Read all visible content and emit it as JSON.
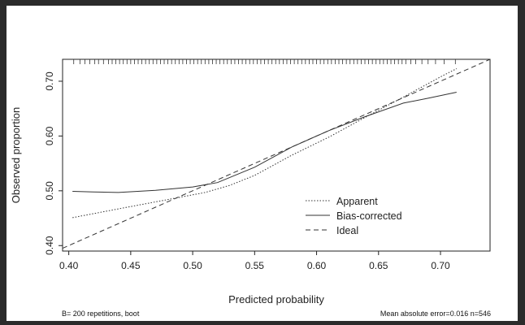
{
  "chart_data": {
    "type": "line",
    "xlabel": "Predicted probability",
    "ylabel": "Observed proportion",
    "xlim": [
      0.395,
      0.74
    ],
    "ylim": [
      0.39,
      0.74
    ],
    "x_ticks": [
      0.4,
      0.45,
      0.5,
      0.55,
      0.6,
      0.65,
      0.7
    ],
    "x_tick_labels": [
      "0.40",
      "0.45",
      "0.50",
      "0.55",
      "0.60",
      "0.65",
      "0.70"
    ],
    "y_ticks": [
      0.4,
      0.5,
      0.6,
      0.7
    ],
    "y_tick_labels": [
      "0.40",
      "0.50",
      "0.60",
      "0.70"
    ],
    "rug_x": [
      0.404,
      0.409,
      0.413,
      0.417,
      0.421,
      0.424,
      0.428,
      0.432,
      0.435,
      0.438,
      0.441,
      0.444,
      0.447,
      0.45,
      0.453,
      0.456,
      0.459,
      0.462,
      0.465,
      0.468,
      0.471,
      0.474,
      0.477,
      0.48,
      0.483,
      0.486,
      0.489,
      0.492,
      0.495,
      0.498,
      0.501,
      0.504,
      0.507,
      0.51,
      0.513,
      0.516,
      0.519,
      0.522,
      0.525,
      0.528,
      0.531,
      0.534,
      0.537,
      0.54,
      0.543,
      0.546,
      0.549,
      0.552,
      0.555,
      0.558,
      0.561,
      0.564,
      0.567,
      0.57,
      0.573,
      0.576,
      0.579,
      0.582,
      0.585,
      0.588,
      0.591,
      0.594,
      0.597,
      0.6,
      0.603,
      0.606,
      0.609,
      0.612,
      0.615,
      0.618,
      0.621,
      0.624,
      0.627,
      0.63,
      0.633,
      0.636,
      0.639,
      0.642,
      0.645,
      0.648,
      0.651,
      0.654,
      0.657,
      0.66,
      0.663,
      0.666,
      0.669,
      0.672,
      0.676,
      0.68,
      0.685,
      0.69,
      0.696,
      0.703,
      0.712
    ],
    "series": [
      {
        "name": "Apparent",
        "dash": "dotted",
        "x": [
          0.403,
          0.44,
          0.48,
          0.51,
          0.53,
          0.55,
          0.58,
          0.61,
          0.64,
          0.67,
          0.7,
          0.713
        ],
        "y": [
          0.451,
          0.467,
          0.484,
          0.497,
          0.51,
          0.528,
          0.565,
          0.598,
          0.635,
          0.671,
          0.708,
          0.723
        ]
      },
      {
        "name": "Bias-corrected",
        "dash": "solid",
        "x": [
          0.403,
          0.42,
          0.44,
          0.47,
          0.5,
          0.52,
          0.55,
          0.58,
          0.61,
          0.64,
          0.67,
          0.69,
          0.713
        ],
        "y": [
          0.499,
          0.498,
          0.497,
          0.501,
          0.507,
          0.515,
          0.543,
          0.58,
          0.61,
          0.636,
          0.66,
          0.669,
          0.68
        ]
      },
      {
        "name": "Ideal",
        "dash": "dashed",
        "x": [
          0.395,
          0.74
        ],
        "y": [
          0.395,
          0.74
        ]
      }
    ],
    "legend": [
      "Apparent",
      "Bias-corrected",
      "Ideal"
    ],
    "footer_left": "B= 200 repetitions, boot",
    "footer_right": "Mean absolute error=0.016 n=546"
  }
}
